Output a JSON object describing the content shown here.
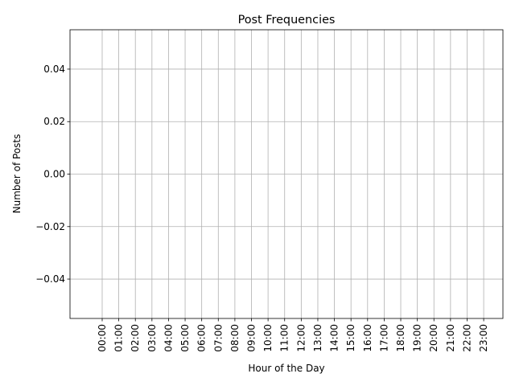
{
  "chart_data": {
    "type": "bar",
    "title": "Post Frequencies",
    "x_label": "Hour of the Day",
    "y_label": "Number of Posts",
    "categories": [
      "00:00",
      "01:00",
      "02:00",
      "03:00",
      "04:00",
      "05:00",
      "06:00",
      "07:00",
      "08:00",
      "09:00",
      "10:00",
      "11:00",
      "12:00",
      "13:00",
      "14:00",
      "15:00",
      "16:00",
      "17:00",
      "18:00",
      "19:00",
      "20:00",
      "21:00",
      "22:00",
      "23:00"
    ],
    "values": [
      0,
      0,
      0,
      0,
      0,
      0,
      0,
      0,
      0,
      0,
      0,
      0,
      0,
      0,
      0,
      0,
      0,
      0,
      0,
      0,
      0,
      0,
      0,
      0
    ],
    "color": "#1f77b4",
    "xlim": [
      -1.94,
      24.16
    ],
    "ylim": [
      -0.055,
      0.055
    ],
    "yticks": [
      {
        "value": -0.04,
        "label": "−0.04"
      },
      {
        "value": -0.02,
        "label": "−0.02"
      },
      {
        "value": 0,
        "label": "0.00"
      },
      0.02,
      0.04
    ],
    "grid": true
  }
}
